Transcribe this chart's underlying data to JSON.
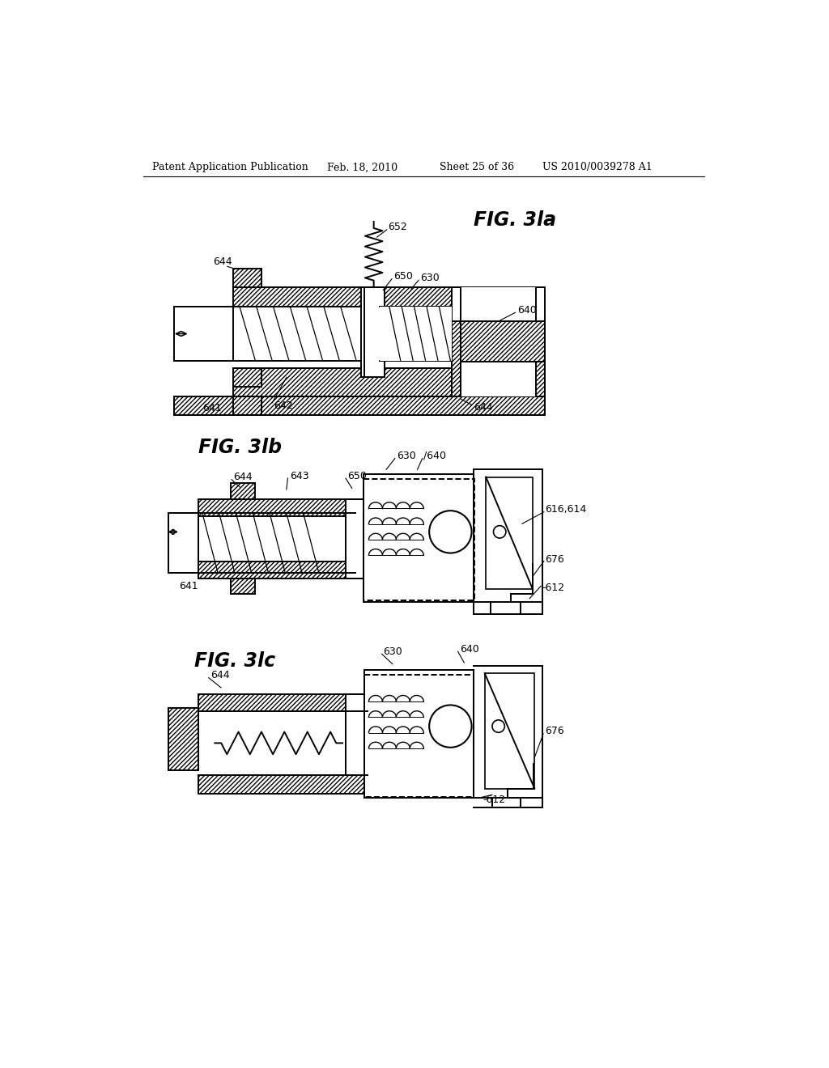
{
  "bg_color": "#ffffff",
  "header_text": "Patent Application Publication",
  "header_date": "Feb. 18, 2010",
  "header_sheet": "Sheet 25 of 36",
  "header_patent": "US 2010/0039278 A1",
  "fig_label_a": "FIG. 3la",
  "fig_label_b": "FIG. 3lb",
  "fig_label_c": "FIG. 3lc",
  "line_color": "#000000"
}
